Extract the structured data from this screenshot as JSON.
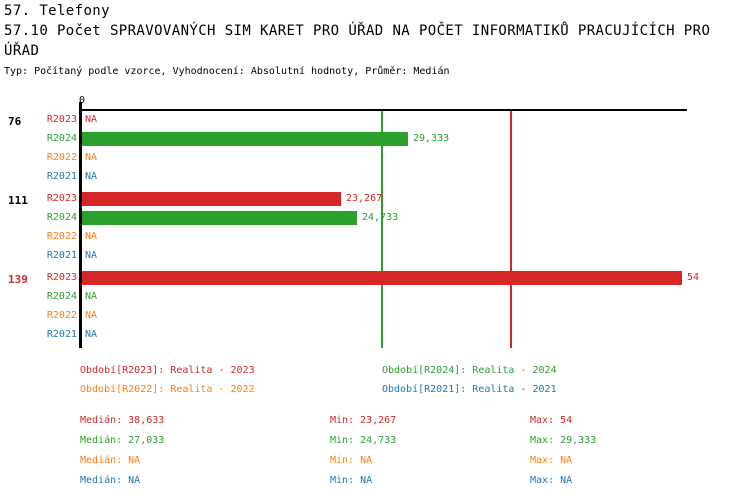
{
  "header": {
    "section_title": "57. Telefony",
    "metric_title_lines": [
      "57.10 Počet SPRAVOVANÝCH SIM KARET PRO ÚŘAD NA POČET INFORMATIKŮ PRACUJÍCÍCH PRO",
      "ÚŘAD"
    ],
    "subtitle": "Typ: Počítaný podle vzorce, Vyhodnocení: Absolutní hodnoty, Průměr: Medián"
  },
  "colors": {
    "red": "#d62728",
    "green": "#2ca02c",
    "orange": "#ff7f0e",
    "blue": "#1f77b4",
    "text": "#000000"
  },
  "chart_data": {
    "type": "bar",
    "orientation": "horizontal",
    "origin_label": "0",
    "x_range": [
      0,
      54
    ],
    "na_label": "NA",
    "legend_position": "bottom",
    "grid": "reference-lines-only",
    "groups": [
      {
        "label": "76",
        "label_color": "text",
        "rows": [
          {
            "series": "R2023",
            "color": "red",
            "value": null,
            "display": "NA"
          },
          {
            "series": "R2024",
            "color": "green",
            "value": 29.333,
            "display": "29,333"
          },
          {
            "series": "R2022",
            "color": "orange",
            "value": null,
            "display": "NA"
          },
          {
            "series": "R2021",
            "color": "blue",
            "value": null,
            "display": "NA"
          }
        ]
      },
      {
        "label": "111",
        "label_color": "text",
        "rows": [
          {
            "series": "R2023",
            "color": "red",
            "value": 23.267,
            "display": "23,267"
          },
          {
            "series": "R2024",
            "color": "green",
            "value": 24.733,
            "display": "24,733"
          },
          {
            "series": "R2022",
            "color": "orange",
            "value": null,
            "display": "NA"
          },
          {
            "series": "R2021",
            "color": "blue",
            "value": null,
            "display": "NA"
          }
        ]
      },
      {
        "label": "139",
        "label_color": "red",
        "rows": [
          {
            "series": "R2023",
            "color": "red",
            "value": 54,
            "display": "54"
          },
          {
            "series": "R2024",
            "color": "green",
            "value": null,
            "display": "NA"
          },
          {
            "series": "R2022",
            "color": "orange",
            "value": null,
            "display": "NA"
          },
          {
            "series": "R2021",
            "color": "blue",
            "value": null,
            "display": "NA"
          }
        ]
      }
    ],
    "reference_lines": [
      {
        "name": "median-green",
        "value": 27.033,
        "color": "green"
      },
      {
        "name": "median-red",
        "value": 38.633,
        "color": "red"
      }
    ]
  },
  "legend": {
    "items": [
      {
        "label": "Období[R2023]: Realita - 2023",
        "color": "red",
        "col": 0,
        "row": 0
      },
      {
        "label": "Období[R2024]: Realita - 2024",
        "color": "green",
        "col": 1,
        "row": 0
      },
      {
        "label": "Období[R2022]: Realita - 2022",
        "color": "orange",
        "col": 0,
        "row": 1
      },
      {
        "label": "Období[R2021]: Realita - 2021",
        "color": "blue",
        "col": 1,
        "row": 1
      }
    ]
  },
  "stats": {
    "median_label": "Medián",
    "min_label": "Min",
    "max_label": "Max",
    "rows": [
      {
        "color": "red",
        "median": "38,633",
        "min": "23,267",
        "max": "54"
      },
      {
        "color": "green",
        "median": "27,033",
        "min": "24,733",
        "max": "29,333"
      },
      {
        "color": "orange",
        "median": "NA",
        "min": "NA",
        "max": "NA"
      },
      {
        "color": "blue",
        "median": "NA",
        "min": "NA",
        "max": "NA"
      }
    ]
  }
}
